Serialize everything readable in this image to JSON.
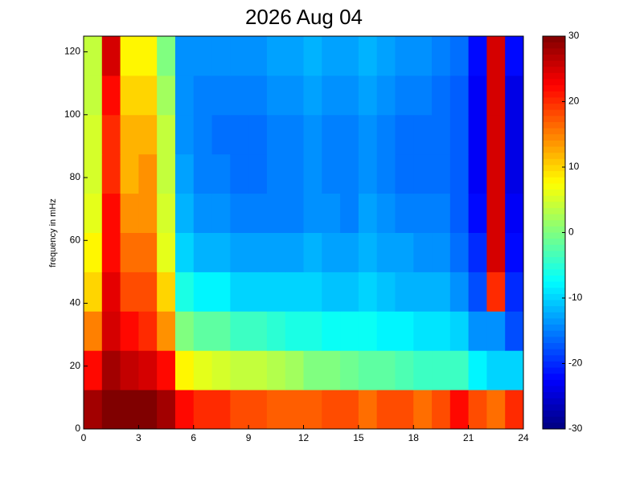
{
  "chart_data": {
    "type": "heatmap",
    "title": "2026 Aug 04",
    "ylabel": "frequency in mHz",
    "colormap": "jet",
    "x": [
      0.5,
      1.5,
      2.5,
      3.5,
      4.5,
      5.5,
      6.5,
      7.5,
      8.5,
      9.5,
      10.5,
      11.5,
      12.5,
      13.5,
      14.5,
      15.5,
      16.5,
      17.5,
      18.5,
      19.5,
      20.5,
      21.5,
      22.5,
      23.5
    ],
    "y": [
      6.25,
      18.75,
      31.25,
      43.75,
      56.25,
      68.75,
      81.25,
      93.75,
      106.25,
      118.75
    ],
    "z": [
      [
        28,
        30,
        30,
        30,
        28,
        22,
        20,
        20,
        18,
        18,
        17,
        17,
        17,
        18,
        18,
        16,
        18,
        18,
        16,
        18,
        22,
        18,
        16,
        20
      ],
      [
        22,
        28,
        26,
        25,
        22,
        8,
        6,
        5,
        4,
        4,
        3,
        2,
        0,
        0,
        -1,
        -2,
        -2,
        -3,
        -4,
        -4,
        -4,
        -8,
        -10,
        -10
      ],
      [
        15,
        25,
        22,
        20,
        14,
        0,
        -2,
        -2,
        -4,
        -4,
        -5,
        -6,
        -6,
        -7,
        -7,
        -7,
        -8,
        -8,
        -9,
        -9,
        -10,
        -14,
        -14,
        -18
      ],
      [
        10,
        24,
        18,
        18,
        10,
        -6,
        -8,
        -8,
        -10,
        -10,
        -10,
        -10,
        -10,
        -11,
        -11,
        -10,
        -11,
        -12,
        -12,
        -12,
        -14,
        -18,
        20,
        -20
      ],
      [
        8,
        22,
        16,
        16,
        6,
        -10,
        -12,
        -12,
        -13,
        -13,
        -13,
        -13,
        -12,
        -13,
        -13,
        -12,
        -13,
        -13,
        -14,
        -14,
        -16,
        -20,
        25,
        -22
      ],
      [
        6,
        22,
        14,
        14,
        5,
        -12,
        -14,
        -14,
        -15,
        -15,
        -15,
        -15,
        -14,
        -14,
        -15,
        -13,
        -14,
        -15,
        -15,
        -15,
        -17,
        -22,
        25,
        -23
      ],
      [
        5,
        20,
        12,
        14,
        4,
        -13,
        -15,
        -15,
        -16,
        -16,
        -15,
        -15,
        -14,
        -15,
        -15,
        -14,
        -15,
        -16,
        -16,
        -16,
        -17,
        -23,
        25,
        -24
      ],
      [
        5,
        20,
        12,
        12,
        4,
        -14,
        -15,
        -16,
        -16,
        -16,
        -15,
        -15,
        -14,
        -15,
        -15,
        -14,
        -15,
        -16,
        -16,
        -16,
        -17,
        -23,
        25,
        -24
      ],
      [
        4,
        22,
        10,
        10,
        2,
        -14,
        -15,
        -15,
        -15,
        -15,
        -14,
        -14,
        -13,
        -14,
        -14,
        -13,
        -14,
        -15,
        -15,
        -16,
        -17,
        -23,
        25,
        -24
      ],
      [
        4,
        25,
        8,
        8,
        0,
        -14,
        -14,
        -14,
        -14,
        -14,
        -13,
        -13,
        -12,
        -13,
        -13,
        -12,
        -13,
        -14,
        -14,
        -15,
        -16,
        -22,
        25,
        -22
      ]
    ],
    "xlim": [
      0,
      24
    ],
    "xticks": [
      0,
      3,
      6,
      9,
      12,
      15,
      18,
      21,
      24
    ],
    "ylim": [
      0,
      125
    ],
    "yticks": [
      0,
      20,
      40,
      60,
      80,
      100,
      120
    ],
    "clim": [
      -30,
      30
    ],
    "cticks": [
      -30,
      -20,
      -10,
      0,
      10,
      20,
      30
    ]
  }
}
